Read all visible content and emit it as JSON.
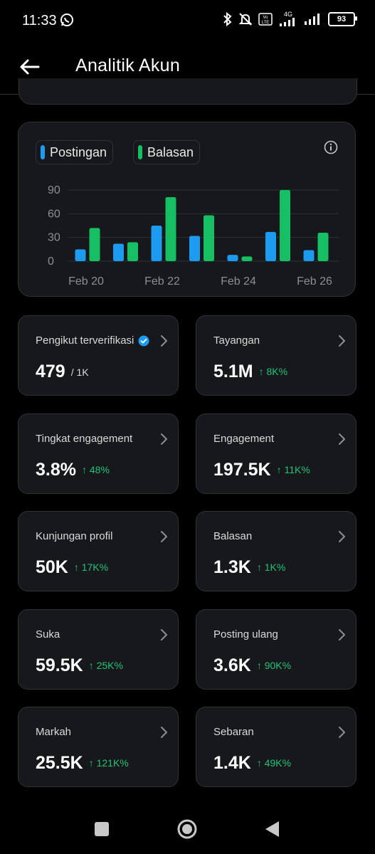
{
  "status_bar": {
    "time": "11:33",
    "battery": "93",
    "network": "4G"
  },
  "header": {
    "title": "Analitik Akun"
  },
  "chart": {
    "legend": [
      {
        "label": "Postingan",
        "color": "#1d9bf0"
      },
      {
        "label": "Balasan",
        "color": "#17bf63"
      }
    ]
  },
  "chart_data": {
    "type": "bar",
    "categories": [
      "Feb 20",
      "Feb 21",
      "Feb 22",
      "Feb 23",
      "Feb 24",
      "Feb 25",
      "Feb 26"
    ],
    "x_tick_labels": [
      "Feb 20",
      "Feb 22",
      "Feb 24",
      "Feb 26"
    ],
    "series": [
      {
        "name": "Postingan",
        "color": "#1d9bf0",
        "values": [
          15,
          22,
          45,
          32,
          8,
          37,
          14
        ]
      },
      {
        "name": "Balasan",
        "color": "#17bf63",
        "values": [
          42,
          24,
          81,
          58,
          6,
          90,
          36
        ]
      }
    ],
    "y_ticks": [
      0,
      30,
      60,
      90
    ],
    "ylim": [
      0,
      90
    ],
    "grid": true,
    "legend_position": "top-left"
  },
  "stats": [
    {
      "label": "Pengikut terverifikasi",
      "value": "479",
      "sub": "/ 1K",
      "delta": "",
      "verified": true
    },
    {
      "label": "Tayangan",
      "value": "5.1M",
      "sub": "",
      "delta": "↑ 8K%"
    },
    {
      "label": "Tingkat engagement",
      "value": "3.8%",
      "sub": "",
      "delta": "↑ 48%"
    },
    {
      "label": "Engagement",
      "value": "197.5K",
      "sub": "",
      "delta": "↑ 11K%"
    },
    {
      "label": "Kunjungan profil",
      "value": "50K",
      "sub": "",
      "delta": "↑ 17K%"
    },
    {
      "label": "Balasan",
      "value": "1.3K",
      "sub": "",
      "delta": "↑ 1K%"
    },
    {
      "label": "Suka",
      "value": "59.5K",
      "sub": "",
      "delta": "↑ 25K%"
    },
    {
      "label": "Posting ulang",
      "value": "3.6K",
      "sub": "",
      "delta": "↑ 90K%"
    },
    {
      "label": "Markah",
      "value": "25.5K",
      "sub": "",
      "delta": "↑ 121K%"
    },
    {
      "label": "Sebaran",
      "value": "1.4K",
      "sub": "",
      "delta": "↑ 49K%"
    }
  ],
  "icons": {
    "back": "arrow-left-icon",
    "info": "info-icon",
    "chevron": "chevron-right-icon",
    "verified": "verified-badge-icon",
    "nav_recents": "square-icon",
    "nav_home": "circle-icon",
    "nav_back": "triangle-back-icon"
  }
}
